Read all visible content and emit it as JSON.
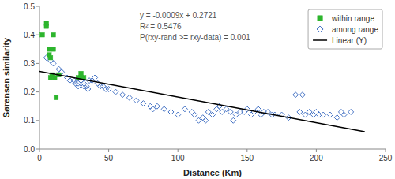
{
  "chart_data": {
    "type": "scatter",
    "xlabel": "Distance (Km)",
    "ylabel": "Sørensen similarity",
    "xlim": [
      0,
      250
    ],
    "ylim": [
      0.0,
      0.5
    ],
    "xticks": [
      0,
      50,
      100,
      150,
      200,
      250
    ],
    "yticks": [
      {
        "value": 0.0,
        "label": "0.0"
      },
      0.1,
      0.2,
      0.3,
      0.4,
      0.5
    ],
    "grid": false,
    "legend": "upper right",
    "annotations": [
      "y = -0.0009x + 0.2721",
      "R² = 0.5476",
      "P(rxy-rand >= rxy-data) = 0.001"
    ],
    "series": [
      {
        "name": "within range",
        "type": "scatter",
        "marker": "square",
        "color": "#2db52d",
        "x": [
          2,
          5,
          5,
          7,
          7,
          8,
          8,
          9,
          10,
          10,
          11,
          12,
          14,
          28,
          30,
          30,
          32
        ],
        "values": [
          0.4,
          0.44,
          0.43,
          0.35,
          0.33,
          0.32,
          0.25,
          0.26,
          0.35,
          0.4,
          0.25,
          0.18,
          0.26,
          0.25,
          0.265,
          0.25,
          0.25
        ]
      },
      {
        "name": "among range",
        "type": "scatter",
        "marker": "diamond",
        "color": "#4472c4",
        "x": [
          5,
          8,
          10,
          14,
          16,
          20,
          22,
          25,
          26,
          28,
          28,
          30,
          30,
          32,
          32,
          34,
          35,
          36,
          38,
          40,
          42,
          44,
          46,
          48,
          50,
          55,
          60,
          65,
          70,
          75,
          80,
          82,
          85,
          90,
          95,
          100,
          105,
          110,
          112,
          115,
          118,
          120,
          122,
          125,
          128,
          130,
          132,
          135,
          138,
          140,
          142,
          145,
          148,
          150,
          153,
          155,
          158,
          160,
          162,
          165,
          168,
          170,
          175,
          180,
          185,
          188,
          190,
          192,
          195,
          198,
          200,
          202,
          205,
          210,
          215,
          218,
          220,
          225
        ],
        "values": [
          0.32,
          0.31,
          0.3,
          0.28,
          0.27,
          0.25,
          0.24,
          0.24,
          0.23,
          0.22,
          0.23,
          0.24,
          0.25,
          0.23,
          0.22,
          0.22,
          0.21,
          0.24,
          0.24,
          0.25,
          0.23,
          0.22,
          0.22,
          0.21,
          0.21,
          0.2,
          0.19,
          0.18,
          0.17,
          0.16,
          0.15,
          0.14,
          0.15,
          0.14,
          0.13,
          0.12,
          0.14,
          0.13,
          0.12,
          0.1,
          0.11,
          0.1,
          0.13,
          0.12,
          0.14,
          0.15,
          0.13,
          0.14,
          0.13,
          0.1,
          0.12,
          0.13,
          0.13,
          0.14,
          0.12,
          0.13,
          0.14,
          0.12,
          0.13,
          0.13,
          0.12,
          0.12,
          0.12,
          0.11,
          0.19,
          0.13,
          0.19,
          0.12,
          0.13,
          0.12,
          0.13,
          0.12,
          0.12,
          0.12,
          0.11,
          0.13,
          0.12,
          0.13
        ]
      },
      {
        "name": "Linear (Y)",
        "type": "line",
        "line_style": "solid",
        "color": "#000000",
        "x": [
          0,
          235
        ],
        "values": [
          0.2721,
          0.0606
        ]
      }
    ]
  }
}
